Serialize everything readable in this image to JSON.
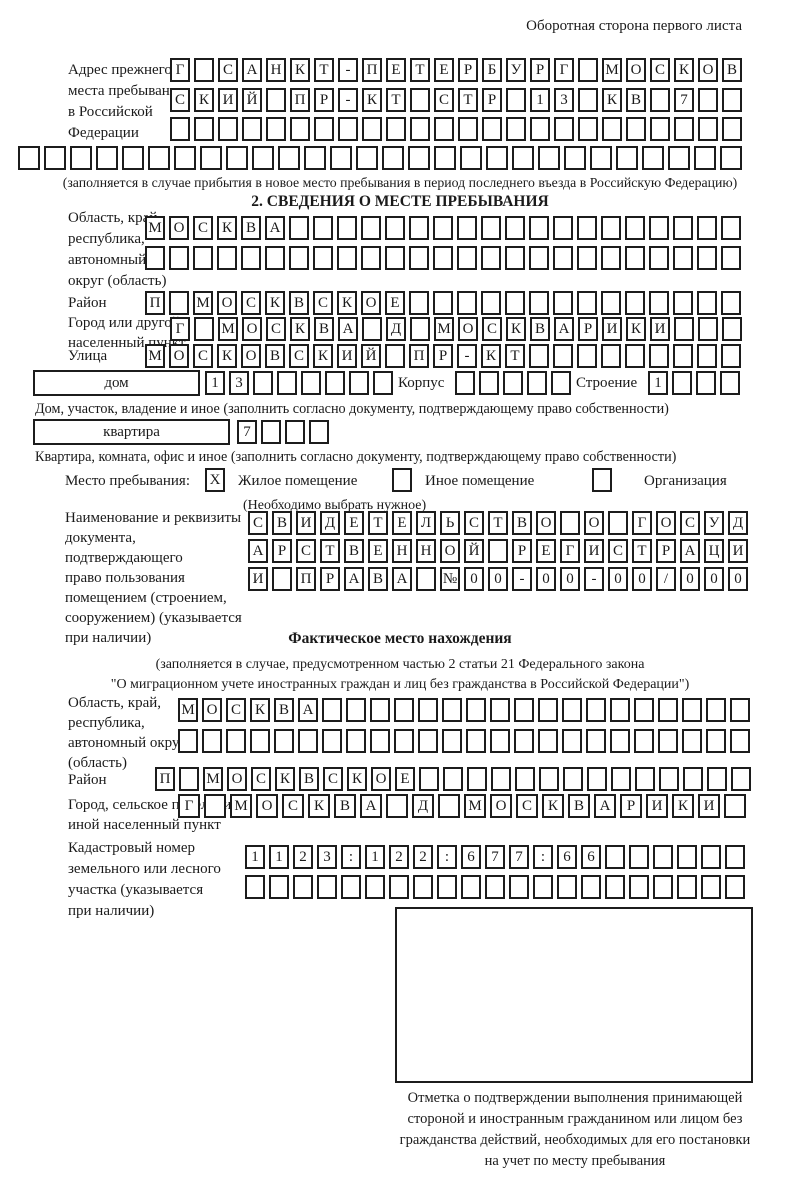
{
  "page": {
    "header_note": "Оборотная сторона первого листа"
  },
  "prev_address": {
    "label": "Адрес прежнего\nместа пребывания\nв Российской\nФедерации",
    "rows": [
      {
        "text": "Г САНКТ-ПЕТЕРБУРГ МОСКОВ",
        "count": 24
      },
      {
        "text": "СКИЙ ПР-КТ СТР 13 КВ 7",
        "count": 24
      },
      {
        "text": "",
        "count": 24
      },
      {
        "text": "",
        "count": 28,
        "wide": true
      }
    ],
    "note": "(заполняется в случае прибытия в новое место пребывания в период последнего въезда в Российскую Федерацию)"
  },
  "section2": {
    "title": "2. СВЕДЕНИЯ О МЕСТЕ ПРЕБЫВАНИЯ",
    "region": {
      "label": "Область, край,\nреспублика,\nавтономный\nокруг (область)",
      "rows": [
        {
          "text": "МОСКВА",
          "count": 25
        },
        {
          "text": "",
          "count": 25
        }
      ]
    },
    "district": {
      "label": "Район",
      "row": {
        "text": "П МОСКВСКОЕ",
        "count": 25
      }
    },
    "city": {
      "label": "Город или другой\nнаселенный пункт",
      "row": {
        "text": "Г МОСКВА Д МОСКВАРИКИ",
        "count": 24
      }
    },
    "street": {
      "label": "Улица",
      "row": {
        "text": "МОСКОВСКИЙ ПР-КТ",
        "count": 25
      }
    },
    "house": {
      "label": "дом",
      "row": {
        "text": "13",
        "count": 8
      }
    },
    "korpus": {
      "label": "Корпус",
      "row": {
        "text": "",
        "count": 5
      }
    },
    "stroenie": {
      "label": "Строение",
      "row": {
        "text": "1",
        "count": 4
      }
    },
    "house_note": "Дом, участок, владение и иное (заполнить согласно документу, подтверждающему право собственности)",
    "apartment": {
      "label": "квартира",
      "row": {
        "text": "7",
        "count": 4
      }
    },
    "apartment_note": "Квартира, комната, офис и иное (заполнить согласно документу, подтверждающему право собственности)",
    "stay_type": {
      "label": "Место пребывания:",
      "options": [
        {
          "label": "Жилое помещение",
          "mark": "X"
        },
        {
          "label": "Иное помещение",
          "mark": ""
        },
        {
          "label": "Организация",
          "mark": ""
        }
      ],
      "note": "(Необходимо выбрать нужное)"
    },
    "document": {
      "label": "Наименование и реквизиты\nдокумента, подтверждающего\nправо пользования\nпомещением (строением,\nсооружением) (указывается\nпри наличии)",
      "rows": [
        {
          "text": "СВИДЕТЕЛЬСТВО О ГОСУД",
          "count": 21
        },
        {
          "text": "АРСТВЕННОЙ РЕГИСТРАЦИ",
          "count": 21
        },
        {
          "text": "И ПРАВА №00-00-00/000",
          "count": 21
        }
      ]
    }
  },
  "actual_location": {
    "title": "Фактическое место нахождения",
    "note": "(заполняется в случае, предусмотренном частью 2 статьи 21 Федерального закона\n\"О миграционном учете иностранных граждан и лиц без гражданства в Российской Федерации\")",
    "region": {
      "label": "Область, край,\nреспублика,\nавтономный округ\n(область)",
      "rows": [
        {
          "text": "МОСКВА",
          "count": 24
        },
        {
          "text": "",
          "count": 24
        }
      ]
    },
    "district": {
      "label": "Район",
      "row": {
        "text": "П МОСКВСКОЕ",
        "count": 25
      }
    },
    "city": {
      "label": "Город, сельское поселение,\nиной населенный пункт",
      "row": {
        "text": "Г МОСКВА Д МОСКВАРИКИ",
        "count": 22,
        "wide": true
      }
    },
    "cadastre": {
      "label": "Кадастровый номер\nземельного или лесного\nучастка (указывается\nпри наличии)",
      "rows": [
        {
          "text": "1123:122:677:66",
          "count": 21
        },
        {
          "text": "",
          "count": 21
        }
      ]
    },
    "stamp_note": "Отметка о подтверждении выполнения принимающей\nстороной и иностранным гражданином или лицом без\nгражданства действий, необходимых для его постановки\nна учет по месту пребывания"
  },
  "colors": {
    "ink": "#1a1a1a",
    "paper": "#ffffff"
  }
}
